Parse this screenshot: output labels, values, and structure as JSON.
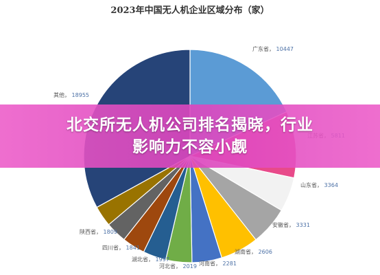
{
  "banner": {
    "line1": "北交所无人机公司排名揭晓，行业",
    "line2": "影响力不容小觑"
  },
  "chart_data": {
    "type": "pie",
    "title": "2023年中国无人机企业区域分布（家）",
    "slices": [
      {
        "label": "广东省",
        "value": 10447,
        "color": "#5b9bd5"
      },
      {
        "label": "江苏省",
        "value": 5811,
        "color": "#e84a8a"
      },
      {
        "label": "",
        "value": 3000,
        "color": "#f2f2f2"
      },
      {
        "label": "山东省",
        "value": 3364,
        "color": "#a5a5a5"
      },
      {
        "label": "安徽省",
        "value": 3331,
        "color": "#ffc000"
      },
      {
        "label": "湖南省",
        "value": 2606,
        "color": "#4472c4"
      },
      {
        "label": "河南省",
        "value": 2281,
        "color": "#70ad47"
      },
      {
        "label": "河北省",
        "value": 2019,
        "color": "#255e91"
      },
      {
        "label": "湖北省",
        "value": 1997,
        "color": "#9e480e"
      },
      {
        "label": "四川省",
        "value": 1841,
        "color": "#636363"
      },
      {
        "label": "陕西省",
        "value": 1809,
        "color": "#997300"
      },
      {
        "label": "其他",
        "value": 18955,
        "color": "#264478"
      }
    ]
  }
}
